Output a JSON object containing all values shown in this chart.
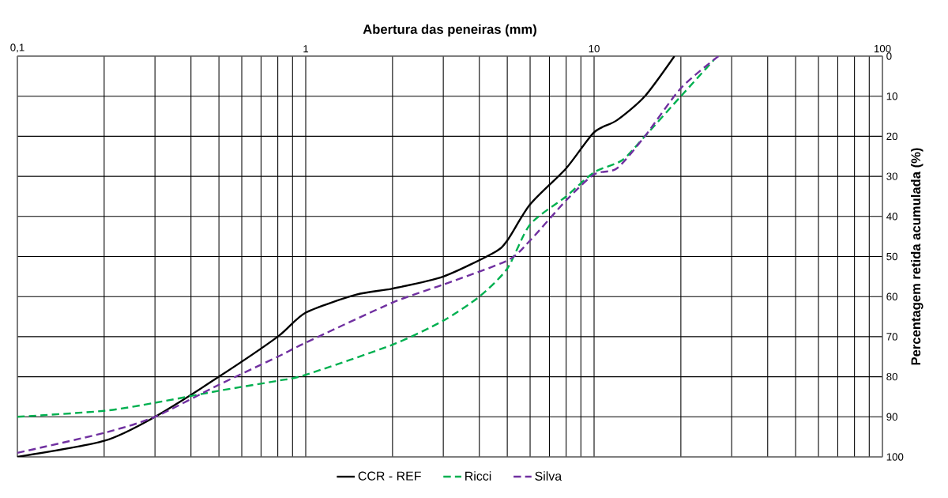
{
  "chart_data": {
    "type": "line",
    "xlabel": "Abertura das peneiras (mm)",
    "ylabel": "Percentagem retida acumulada (%)",
    "log": "x",
    "xlim": [
      0.1,
      100
    ],
    "xticks": [
      {
        "value": 0.1,
        "label": "0,1"
      },
      1,
      10,
      100
    ],
    "ylim": [
      100,
      0
    ],
    "yticks": [
      0,
      10,
      20,
      30,
      40,
      50,
      60,
      70,
      80,
      90,
      100
    ],
    "grid": true,
    "legend": "bottom",
    "marker": "none",
    "series": [
      {
        "name": "CCR - REF",
        "color": "#000000",
        "line_style": "solid",
        "x": [
          0.1,
          0.2,
          0.3,
          0.5,
          0.8,
          1,
          1.5,
          2,
          3,
          4.5,
          5,
          6,
          8,
          10,
          12,
          15,
          19
        ],
        "values": [
          100,
          96,
          90,
          80,
          70,
          64,
          59.5,
          58,
          55,
          49,
          46,
          37,
          28,
          19,
          16,
          10,
          0
        ]
      },
      {
        "name": "Ricci",
        "color": "#00b050",
        "line_style": "dashed",
        "x": [
          0.1,
          0.2,
          0.3,
          0.5,
          0.8,
          1,
          2,
          3,
          4,
          5,
          6,
          8,
          10,
          12.5,
          15,
          20,
          26
        ],
        "values": [
          90,
          88.5,
          86.5,
          83.5,
          81,
          79.5,
          72,
          66,
          60,
          53,
          42,
          35,
          29,
          26,
          20,
          10,
          1
        ]
      },
      {
        "name": "Silva",
        "color": "#7030a0",
        "line_style": "dashed",
        "x": [
          0.1,
          0.2,
          0.3,
          0.5,
          0.8,
          1,
          2,
          3,
          5,
          6,
          8,
          10,
          12,
          15,
          20,
          27
        ],
        "values": [
          99,
          94,
          90,
          82,
          75,
          71.5,
          61.5,
          57,
          51,
          46,
          36,
          29.5,
          28,
          20,
          8,
          0
        ]
      }
    ]
  }
}
